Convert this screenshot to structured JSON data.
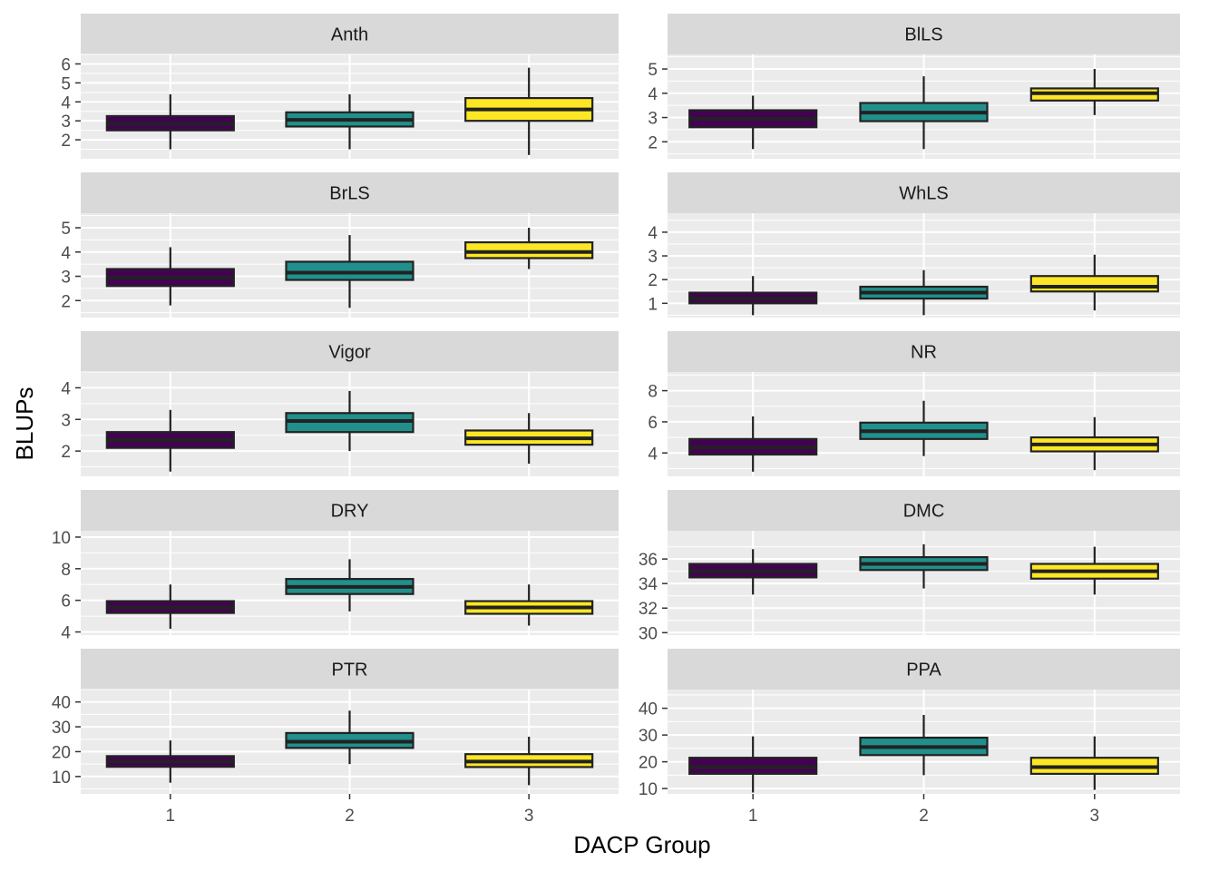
{
  "colors": {
    "panel_bg": "#EBEBEB",
    "strip_bg": "#D9D9D9",
    "grid": "#FFFFFF",
    "box_outline": "#222222",
    "group_fill": {
      "1": "#440154",
      "2": "#21908C",
      "3": "#FDE725"
    }
  },
  "chart_data": {
    "type": "boxplot",
    "layout": "facet-wrap, 5 rows x 2 columns, free y scales",
    "xlabel": "DACP Group",
    "ylabel": "BLUPs",
    "categories": [
      "1",
      "2",
      "3"
    ],
    "legend": "none",
    "grid": true,
    "panels": [
      {
        "name": "Anth",
        "ylim": [
          1,
          6.5
        ],
        "yticks": [
          2,
          3,
          4,
          5,
          6
        ],
        "boxes": [
          {
            "group": "1",
            "min": 1.5,
            "q1": 2.5,
            "median": 2.85,
            "q3": 3.25,
            "max": 4.4
          },
          {
            "group": "2",
            "min": 1.5,
            "q1": 2.7,
            "median": 3.05,
            "q3": 3.45,
            "max": 4.4
          },
          {
            "group": "3",
            "min": 1.2,
            "q1": 3.0,
            "median": 3.6,
            "q3": 4.2,
            "max": 5.8
          }
        ]
      },
      {
        "name": "BlLS",
        "ylim": [
          1.3,
          5.6
        ],
        "yticks": [
          2,
          3,
          4,
          5
        ],
        "boxes": [
          {
            "group": "1",
            "min": 1.7,
            "q1": 2.6,
            "median": 2.95,
            "q3": 3.3,
            "max": 3.9
          },
          {
            "group": "2",
            "min": 1.7,
            "q1": 2.85,
            "median": 3.2,
            "q3": 3.6,
            "max": 4.7
          },
          {
            "group": "3",
            "min": 3.1,
            "q1": 3.7,
            "median": 4.0,
            "q3": 4.2,
            "max": 5.0
          }
        ]
      },
      {
        "name": "BrLS",
        "ylim": [
          1.3,
          5.6
        ],
        "yticks": [
          2,
          3,
          4,
          5
        ],
        "boxes": [
          {
            "group": "1",
            "min": 1.8,
            "q1": 2.6,
            "median": 2.95,
            "q3": 3.3,
            "max": 4.2
          },
          {
            "group": "2",
            "min": 1.7,
            "q1": 2.85,
            "median": 3.15,
            "q3": 3.6,
            "max": 4.7
          },
          {
            "group": "3",
            "min": 3.3,
            "q1": 3.75,
            "median": 4.0,
            "q3": 4.4,
            "max": 5.0
          }
        ]
      },
      {
        "name": "WhLS",
        "ylim": [
          0.4,
          4.8
        ],
        "yticks": [
          1,
          2,
          3,
          4
        ],
        "boxes": [
          {
            "group": "1",
            "min": 0.5,
            "q1": 1.0,
            "median": 1.2,
            "q3": 1.45,
            "max": 2.15
          },
          {
            "group": "2",
            "min": 0.5,
            "q1": 1.2,
            "median": 1.45,
            "q3": 1.7,
            "max": 2.4
          },
          {
            "group": "3",
            "min": 0.7,
            "q1": 1.5,
            "median": 1.7,
            "q3": 2.15,
            "max": 3.05
          }
        ]
      },
      {
        "name": "Vigor",
        "ylim": [
          1.2,
          4.5
        ],
        "yticks": [
          2,
          3,
          4
        ],
        "boxes": [
          {
            "group": "1",
            "min": 1.35,
            "q1": 2.1,
            "median": 2.35,
            "q3": 2.6,
            "max": 3.3
          },
          {
            "group": "2",
            "min": 2.0,
            "q1": 2.6,
            "median": 2.95,
            "q3": 3.2,
            "max": 3.9
          },
          {
            "group": "3",
            "min": 1.6,
            "q1": 2.2,
            "median": 2.4,
            "q3": 2.65,
            "max": 3.2
          }
        ]
      },
      {
        "name": "NR",
        "ylim": [
          2.5,
          9.2
        ],
        "yticks": [
          4,
          6,
          8
        ],
        "boxes": [
          {
            "group": "1",
            "min": 2.8,
            "q1": 3.9,
            "median": 4.35,
            "q3": 4.9,
            "max": 6.35
          },
          {
            "group": "2",
            "min": 3.8,
            "q1": 4.9,
            "median": 5.4,
            "q3": 5.95,
            "max": 7.35
          },
          {
            "group": "3",
            "min": 2.9,
            "q1": 4.1,
            "median": 4.55,
            "q3": 5.0,
            "max": 6.3
          }
        ]
      },
      {
        "name": "DRY",
        "ylim": [
          3.8,
          10.4
        ],
        "yticks": [
          4,
          6,
          8,
          10
        ],
        "boxes": [
          {
            "group": "1",
            "min": 4.2,
            "q1": 5.2,
            "median": 5.55,
            "q3": 5.95,
            "max": 7.0
          },
          {
            "group": "2",
            "min": 5.3,
            "q1": 6.4,
            "median": 6.85,
            "q3": 7.35,
            "max": 8.6
          },
          {
            "group": "3",
            "min": 4.4,
            "q1": 5.15,
            "median": 5.55,
            "q3": 5.95,
            "max": 7.0
          }
        ]
      },
      {
        "name": "DMC",
        "ylim": [
          29.8,
          38.3
        ],
        "yticks": [
          30,
          32,
          34,
          36
        ],
        "boxes": [
          {
            "group": "1",
            "min": 33.1,
            "q1": 34.5,
            "median": 35.0,
            "q3": 35.6,
            "max": 36.8
          },
          {
            "group": "2",
            "min": 33.6,
            "q1": 35.1,
            "median": 35.6,
            "q3": 36.15,
            "max": 37.2
          },
          {
            "group": "3",
            "min": 33.1,
            "q1": 34.4,
            "median": 35.0,
            "q3": 35.6,
            "max": 37.0
          }
        ]
      },
      {
        "name": "PTR",
        "ylim": [
          3,
          45
        ],
        "yticks": [
          10,
          20,
          30,
          40
        ],
        "boxes": [
          {
            "group": "1",
            "min": 7.5,
            "q1": 13.9,
            "median": 16.0,
            "q3": 18.2,
            "max": 24.5
          },
          {
            "group": "2",
            "min": 15.0,
            "q1": 21.5,
            "median": 24.0,
            "q3": 27.5,
            "max": 36.5
          },
          {
            "group": "3",
            "min": 6.5,
            "q1": 13.8,
            "median": 16.0,
            "q3": 19.0,
            "max": 26.0
          }
        ]
      },
      {
        "name": "PPA",
        "ylim": [
          8,
          47
        ],
        "yticks": [
          10,
          20,
          30,
          40
        ],
        "boxes": [
          {
            "group": "1",
            "min": 8.5,
            "q1": 15.5,
            "median": 18.0,
            "q3": 21.5,
            "max": 29.5
          },
          {
            "group": "2",
            "min": 15.0,
            "q1": 22.5,
            "median": 25.5,
            "q3": 29.0,
            "max": 37.5
          },
          {
            "group": "3",
            "min": 9.5,
            "q1": 15.5,
            "median": 18.0,
            "q3": 21.5,
            "max": 29.5
          }
        ]
      }
    ]
  }
}
